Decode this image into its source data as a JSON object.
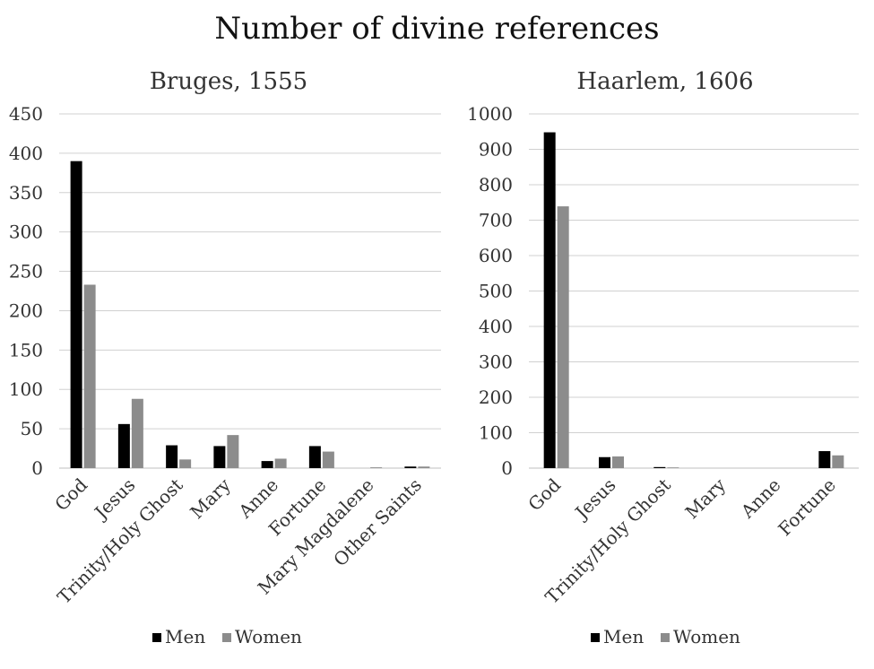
{
  "title": "Number of divine references",
  "colors": {
    "men": "#000000",
    "women": "#8c8c8c",
    "grid": "#d0d0d0",
    "axis": "#bfbfbf"
  },
  "chart_data": [
    {
      "type": "bar",
      "title": "Bruges, 1555",
      "categories": [
        "God",
        "Jesus",
        "Trinity/Holy Ghost",
        "Mary",
        "Anne",
        "Fortune",
        "Mary Magdalene",
        "Other Saints"
      ],
      "series": [
        {
          "name": "Men",
          "values": [
            390,
            56,
            29,
            28,
            9,
            28,
            0,
            2
          ]
        },
        {
          "name": "Women",
          "values": [
            233,
            88,
            11,
            42,
            12,
            21,
            1,
            2
          ]
        }
      ],
      "ylim": [
        0,
        450
      ],
      "yticks": [
        "0",
        "50",
        "100",
        "150",
        "200",
        "250",
        "300",
        "350",
        "400",
        "450"
      ],
      "grid": true,
      "legend": "bottom"
    },
    {
      "type": "bar",
      "title": "Haarlem, 1606",
      "categories": [
        "God",
        "Jesus",
        "Trinity/Holy Ghost",
        "Mary",
        "Anne",
        "Fortune"
      ],
      "series": [
        {
          "name": "Men",
          "values": [
            948,
            31,
            3,
            0,
            0,
            48
          ]
        },
        {
          "name": "Women",
          "values": [
            739,
            33,
            2,
            0,
            0,
            36
          ]
        }
      ],
      "ylim": [
        0,
        1000
      ],
      "yticks": [
        "0",
        "100",
        "200",
        "300",
        "400",
        "500",
        "600",
        "700",
        "800",
        "900",
        "1000"
      ],
      "grid": true,
      "legend": "bottom"
    }
  ]
}
